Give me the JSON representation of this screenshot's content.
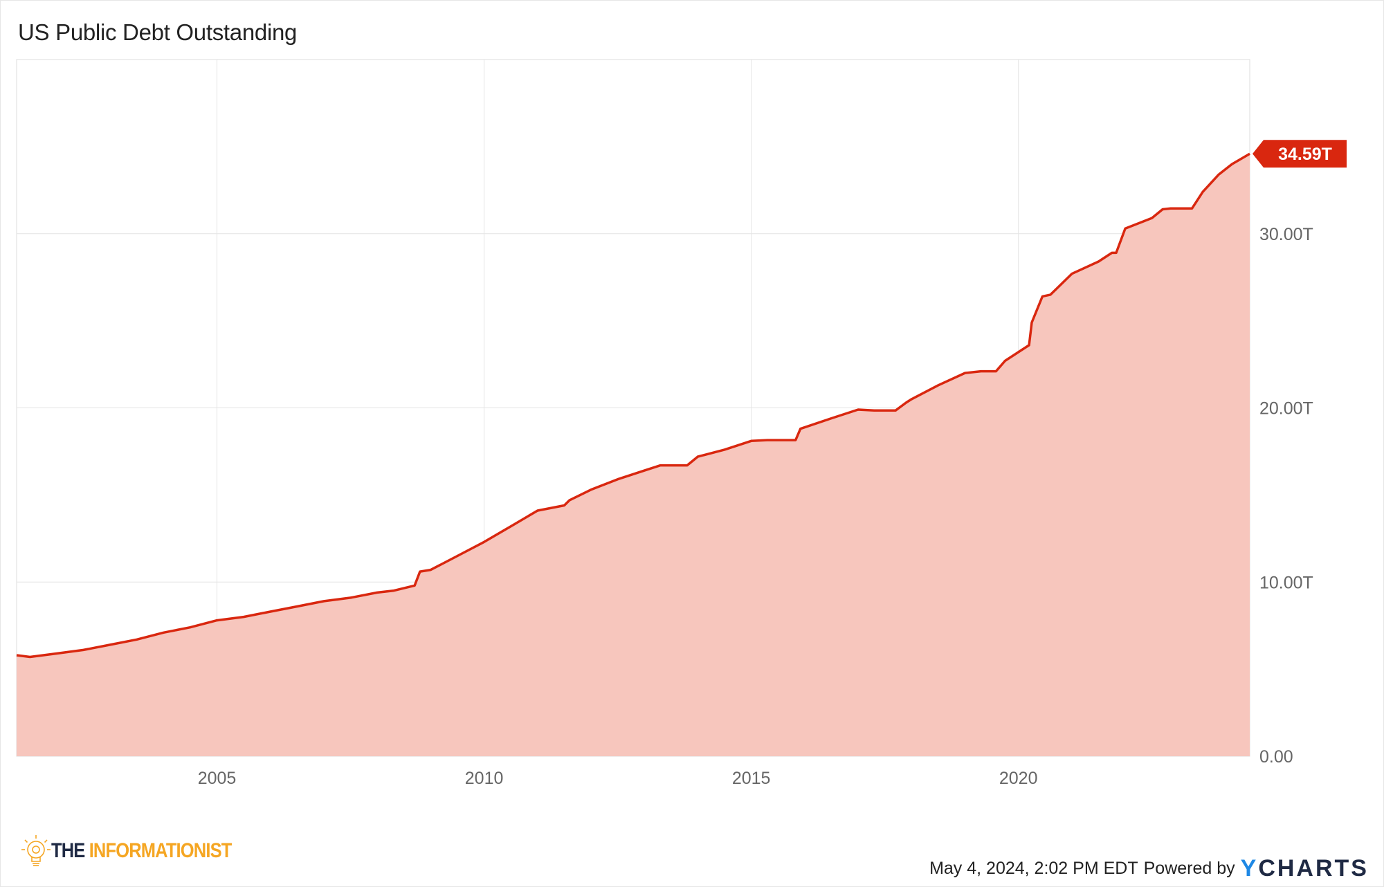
{
  "chart_data": {
    "type": "area",
    "title": "US Public Debt Outstanding",
    "x_ticks": [
      "2005",
      "2010",
      "2015",
      "2020"
    ],
    "y_ticks": [
      "0.00",
      "10.00T",
      "20.00T",
      "30.00T"
    ],
    "ylim": [
      0,
      40
    ],
    "xlim": [
      2001.25,
      2024.33
    ],
    "grid": true,
    "series": [
      {
        "color": "#d9270f",
        "fill": "#f7c6bd",
        "last_value_label": "34.59T",
        "x": [
          2001.25,
          2001.5,
          2002.0,
          2002.5,
          2003.0,
          2003.5,
          2004.0,
          2004.5,
          2005.0,
          2005.5,
          2006.0,
          2006.5,
          2007.0,
          2007.5,
          2008.0,
          2008.3,
          2008.7,
          2008.8,
          2009.0,
          2009.5,
          2010.0,
          2010.5,
          2011.0,
          2011.5,
          2011.6,
          2012.0,
          2012.5,
          2013.0,
          2013.3,
          2013.8,
          2014.0,
          2014.5,
          2015.0,
          2015.3,
          2015.83,
          2015.92,
          2016.5,
          2017.0,
          2017.3,
          2017.7,
          2017.9,
          2018.0,
          2018.5,
          2019.0,
          2019.3,
          2019.58,
          2019.75,
          2020.0,
          2020.2,
          2020.25,
          2020.45,
          2020.6,
          2021.0,
          2021.5,
          2021.75,
          2021.83,
          2022.0,
          2022.5,
          2022.7,
          2022.85,
          2023.0,
          2023.25,
          2023.45,
          2023.75,
          2024.0,
          2024.33
        ],
        "y": [
          5.8,
          5.7,
          5.9,
          6.1,
          6.4,
          6.7,
          7.1,
          7.4,
          7.8,
          8.0,
          8.3,
          8.6,
          8.9,
          9.1,
          9.4,
          9.5,
          9.8,
          10.6,
          10.7,
          11.5,
          12.3,
          13.2,
          14.1,
          14.4,
          14.7,
          15.3,
          15.9,
          16.4,
          16.7,
          16.7,
          17.2,
          17.6,
          18.1,
          18.15,
          18.15,
          18.8,
          19.4,
          19.9,
          19.85,
          19.85,
          20.3,
          20.5,
          21.3,
          22.0,
          22.1,
          22.1,
          22.7,
          23.2,
          23.6,
          24.9,
          26.4,
          26.5,
          27.7,
          28.4,
          28.9,
          28.9,
          30.3,
          30.9,
          31.4,
          31.45,
          31.45,
          31.45,
          32.4,
          33.4,
          34.0,
          34.59
        ]
      }
    ]
  },
  "footer": {
    "brand_the": "THE",
    "brand_name": "INFORMATIONIST",
    "timestamp": "May 4, 2024, 2:02 PM EDT",
    "powered_by": "Powered by",
    "ycharts_y": "Y",
    "ycharts_rest": "CHARTS"
  }
}
